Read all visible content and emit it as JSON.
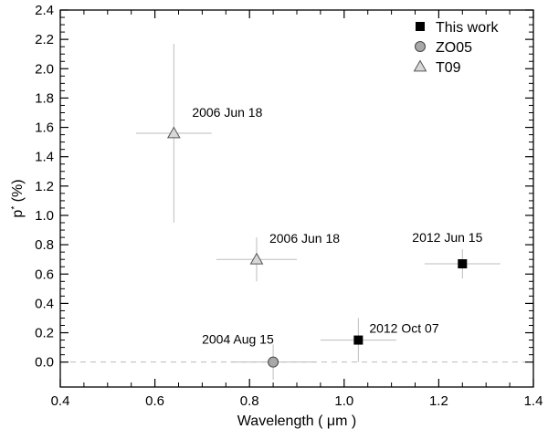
{
  "chart_data": {
    "type": "scatter",
    "title": "",
    "xlabel": "Wavelength ( μm )",
    "ylabel_base": "p",
    "ylabel_sup": "*",
    "ylabel_unit": " (%)",
    "xlim": [
      0.4,
      1.4
    ],
    "ylim": [
      -0.17,
      2.4
    ],
    "x_ticks": [
      0.4,
      0.6,
      0.8,
      1.0,
      1.2,
      1.4
    ],
    "x_tick_labels": [
      "0.4",
      "0.6",
      "0.8",
      "1.0",
      "1.2",
      "1.4"
    ],
    "y_ticks": [
      0.0,
      0.2,
      0.4,
      0.6,
      0.8,
      1.0,
      1.2,
      1.4,
      1.6,
      1.8,
      2.0,
      2.2,
      2.4
    ],
    "y_tick_labels": [
      "0.0",
      "0.2",
      "0.4",
      "0.6",
      "0.8",
      "1.0",
      "1.2",
      "1.4",
      "1.6",
      "1.8",
      "2.0",
      "2.2",
      "2.4"
    ],
    "zero_line": true,
    "grid": false,
    "legend_position": "top-right",
    "series": [
      {
        "name": "This work",
        "marker": "square",
        "color": "#000000",
        "points": [
          {
            "x": 1.25,
            "y": 0.67,
            "xerr": 0.08,
            "yerr": 0.1,
            "label": "2012 Jun 15"
          },
          {
            "x": 1.03,
            "y": 0.15,
            "xerr": 0.08,
            "yerr": 0.15,
            "label": "2012 Oct 07"
          }
        ]
      },
      {
        "name": "ZO05",
        "marker": "circle",
        "color": "#a8a8a8",
        "points": [
          {
            "x": 0.85,
            "y": 0.0,
            "xerr": 0.09,
            "yerr": 0.12,
            "label": "2004 Aug 15"
          }
        ]
      },
      {
        "name": "T09",
        "marker": "triangle",
        "color": "#d8d8d8",
        "points": [
          {
            "x": 0.64,
            "y": 1.56,
            "xerr": 0.08,
            "yerr": 0.61,
            "label": "2006 Jun 18"
          },
          {
            "x": 0.815,
            "y": 0.7,
            "xerr": 0.085,
            "yerr": 0.15,
            "label": "2006 Jun 18"
          }
        ]
      }
    ]
  }
}
